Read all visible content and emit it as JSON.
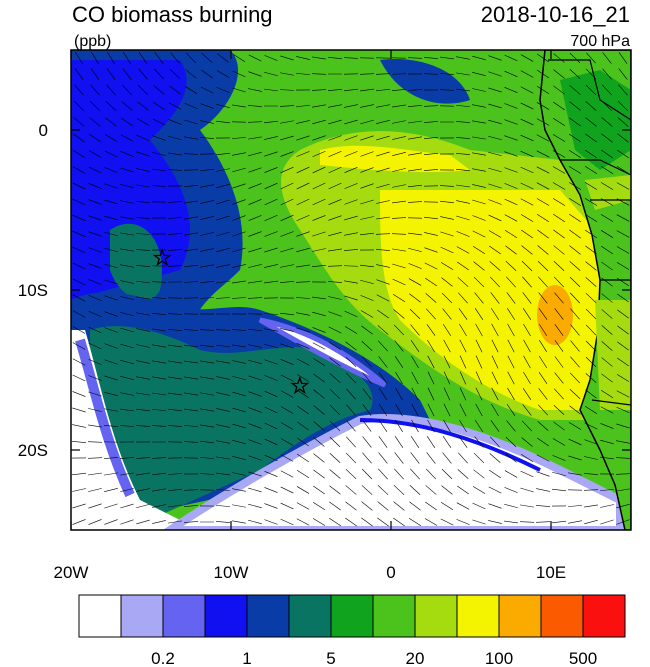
{
  "chart_data": {
    "type": "map",
    "title": "CO biomass burning",
    "units": "(ppb)",
    "time": "2018-10-16_21",
    "level": "700 hPa",
    "xlim": [
      -20,
      15
    ],
    "ylim": [
      -25,
      5
    ],
    "xticks": [
      {
        "value": -20,
        "label": "20W"
      },
      {
        "value": -10,
        "label": "10W"
      },
      {
        "value": 0,
        "label": "0"
      },
      {
        "value": 10,
        "label": "10E"
      }
    ],
    "yticks": [
      {
        "value": 0,
        "label": "0"
      },
      {
        "value": -10,
        "label": "10S"
      },
      {
        "value": -20,
        "label": "20S"
      }
    ],
    "markers": [
      {
        "lon": -14.3,
        "lat": -8
      },
      {
        "lon": -5.7,
        "lat": -16
      }
    ],
    "colorbar": {
      "colors": [
        "#ffffff",
        "#a8a8f5",
        "#6464f0",
        "#1010f0",
        "#0a3ca8",
        "#0a7462",
        "#10a41e",
        "#4cc21c",
        "#a4dc10",
        "#f4f400",
        "#fbaa00",
        "#fb5a00",
        "#fb1010"
      ],
      "ticks": [
        0.2,
        1,
        5,
        20,
        100,
        500
      ]
    }
  }
}
